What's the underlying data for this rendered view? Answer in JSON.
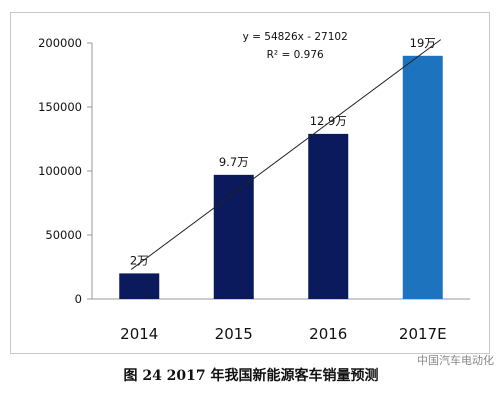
{
  "caption": "图 24 2017 年我国新能源客车销量预测",
  "watermark": "中国汽车电动化",
  "chart_data": {
    "type": "bar",
    "categories": [
      "2014",
      "2015",
      "2016",
      "2017E"
    ],
    "values": [
      20000,
      97000,
      129000,
      190000
    ],
    "data_labels": [
      "2万",
      "9.7万",
      "12.9万",
      "19万"
    ],
    "bar_colors": [
      "#0a1a5c",
      "#0a1a5c",
      "#0a1a5c",
      "#1e73be"
    ],
    "ylim": [
      0,
      200000
    ],
    "yticks": [
      0,
      50000,
      100000,
      150000,
      200000
    ],
    "ytick_labels": [
      "0",
      "50000",
      "100000",
      "150000",
      "200000"
    ],
    "trendline": {
      "equation": "y = 54826x - 27102",
      "r_squared": "R² = 0.976",
      "slope": 54826,
      "intercept": -27102
    },
    "grid": false,
    "xlabel": "",
    "ylabel": ""
  }
}
